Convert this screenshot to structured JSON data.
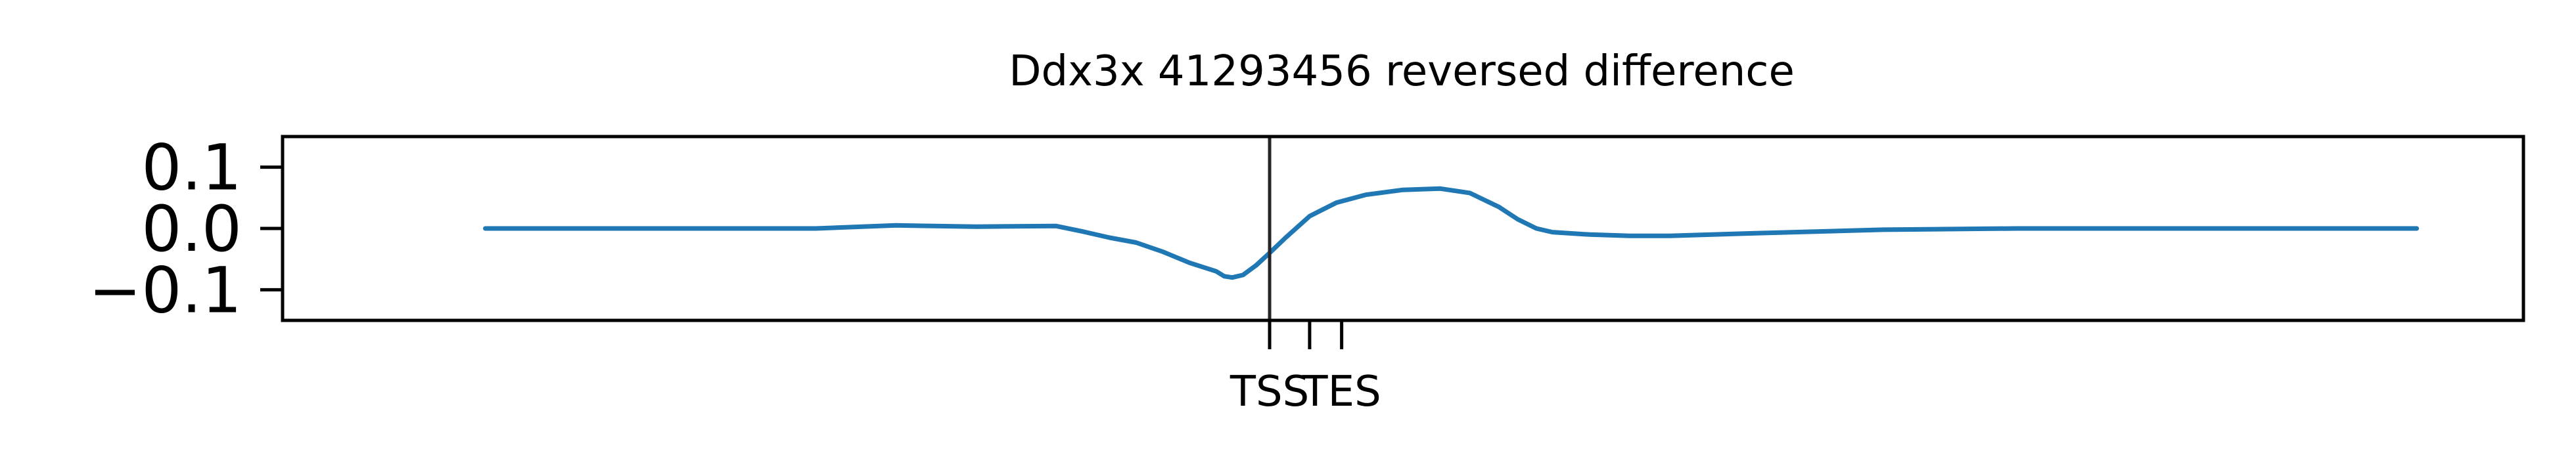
{
  "chart_data": {
    "type": "line",
    "title": "Ddx3x 41293456 reversed difference",
    "xlabel": "",
    "ylabel": "",
    "xlim": [
      -3000,
      5400
    ],
    "ylim": [
      -0.15,
      0.15
    ],
    "yticks": [
      {
        "value": 0.1,
        "label": "0.1"
      },
      {
        "value": 0.0,
        "label": "0.0"
      },
      {
        "value": -0.1,
        "label": "−0.1"
      }
    ],
    "xticks": [
      {
        "value": 700,
        "label": "TSS"
      },
      {
        "value": 850,
        "label": ""
      },
      {
        "value": 970,
        "label": "TES"
      }
    ],
    "vline_x": 700,
    "grid": false,
    "series": [
      {
        "color": "#1f77b4",
        "x": [
          -2240,
          -1500,
          -1000,
          -700,
          -400,
          -100,
          0,
          100,
          200,
          300,
          400,
          500,
          530,
          560,
          600,
          650,
          700,
          760,
          850,
          950,
          1060,
          1200,
          1340,
          1450,
          1560,
          1630,
          1700,
          1760,
          1900,
          2050,
          2200,
          2500,
          3000,
          3500,
          4000,
          4500,
          5000,
          3720
        ],
        "y": [
          0.0,
          0.0,
          0.0,
          0.005,
          0.003,
          0.004,
          -0.005,
          -0.015,
          -0.023,
          -0.038,
          -0.056,
          -0.07,
          -0.078,
          -0.08,
          -0.076,
          -0.06,
          -0.04,
          -0.015,
          0.02,
          0.042,
          0.055,
          0.063,
          0.065,
          0.058,
          0.035,
          0.015,
          0.0,
          -0.006,
          -0.01,
          -0.012,
          -0.012,
          -0.008,
          -0.002,
          0.0,
          0.0,
          0.0,
          0.0,
          0.0
        ]
      }
    ]
  }
}
